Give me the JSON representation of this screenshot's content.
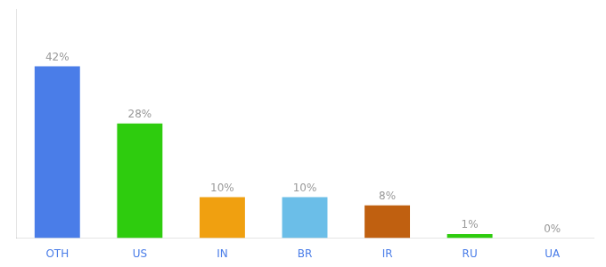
{
  "chart_data": {
    "type": "bar",
    "categories": [
      "OTH",
      "US",
      "IN",
      "BR",
      "IR",
      "RU",
      "UA"
    ],
    "values": [
      42,
      28,
      10,
      10,
      8,
      1,
      0
    ],
    "value_labels": [
      "42%",
      "28%",
      "10%",
      "10%",
      "8%",
      "1%",
      "0%"
    ],
    "colors": [
      "#4a7de8",
      "#2ecc0e",
      "#f0a010",
      "#6bbee8",
      "#c06010",
      "#2ecc0e",
      "#cccccc"
    ],
    "ylim": [
      0,
      56
    ],
    "grid": false,
    "data_labels": true,
    "tick_labels": "x"
  }
}
